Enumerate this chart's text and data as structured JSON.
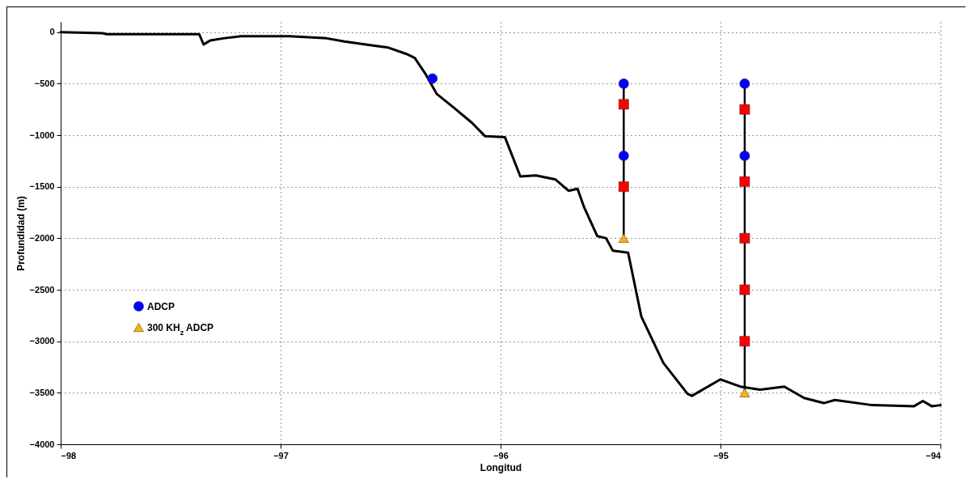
{
  "chart_data": {
    "type": "line",
    "xlabel": "Longitud",
    "ylabel": "Profundidad (m)",
    "xlim": [
      -98,
      -94
    ],
    "xticks": [
      -98,
      -97,
      -96,
      -95,
      -94
    ],
    "ylim": [
      -4000,
      100
    ],
    "yticks": [
      -4000,
      -3500,
      -3000,
      -2500,
      -2000,
      -1500,
      -1000,
      -500,
      0
    ],
    "grid": true,
    "legend": "bottom left",
    "series": [
      {
        "type": "line",
        "color": "#000000",
        "x": [
          -98,
          -97.81,
          -97.79,
          -97.37,
          -97.35,
          -97.32,
          -97.26,
          -97.18,
          -96.96,
          -96.79,
          -96.71,
          -96.58,
          -96.51,
          -96.43,
          -96.39,
          -96.34,
          -96.29,
          -96.22,
          -96.13,
          -96.07,
          -95.98,
          -95.91,
          -95.84,
          -95.75,
          -95.69,
          -95.65,
          -95.62,
          -95.56,
          -95.52,
          -95.49,
          -95.42,
          -95.36,
          -95.26,
          -95.15,
          -95.13,
          -95.0,
          -94.91,
          -94.82,
          -94.71,
          -94.62,
          -94.53,
          -94.48,
          -94.31,
          -94.12,
          -94.08,
          -94.04,
          -94.0
        ],
        "values": [
          0,
          -10,
          -20,
          -20,
          -120,
          -80,
          -60,
          -40,
          -40,
          -60,
          -90,
          -130,
          -150,
          -210,
          -250,
          -410,
          -600,
          -720,
          -880,
          -1010,
          -1020,
          -1400,
          -1390,
          -1430,
          -1540,
          -1520,
          -1700,
          -1980,
          -2000,
          -2120,
          -2140,
          -2760,
          -3210,
          -3510,
          -3530,
          -3370,
          -3440,
          -3470,
          -3440,
          -3550,
          -3600,
          -3570,
          -3620,
          -3630,
          -3580,
          -3630,
          -3620
        ]
      },
      {
        "type": "line",
        "color": "#000000",
        "x": [
          -95.44,
          -95.44
        ],
        "values": [
          -500,
          -2000
        ]
      },
      {
        "type": "line",
        "color": "#000000",
        "x": [
          -94.89,
          -94.89
        ],
        "values": [
          -500,
          -3500
        ]
      },
      {
        "type": "scatter",
        "name": "ADCP",
        "color": "#0000ff",
        "marker": "circle",
        "x": [
          -96.31,
          -95.44,
          -95.44,
          -94.89,
          -94.89
        ],
        "values": [
          -450,
          -500,
          -1200,
          -500,
          -1200
        ]
      },
      {
        "type": "scatter",
        "name": "300 KH$_{z}$ ADCP",
        "color": "#f5b400",
        "marker": "triangle",
        "x": [
          -95.44,
          -94.89
        ],
        "values": [
          -2000,
          -3500
        ]
      },
      {
        "type": "scatter",
        "color": "#ff0000",
        "marker": "square",
        "x": [
          -95.44,
          -95.44,
          -94.89,
          -94.89,
          -94.89,
          -94.89,
          -94.89
        ],
        "values": [
          -700,
          -1500,
          -750,
          -1450,
          -2000,
          -2500,
          -3000
        ]
      }
    ]
  }
}
